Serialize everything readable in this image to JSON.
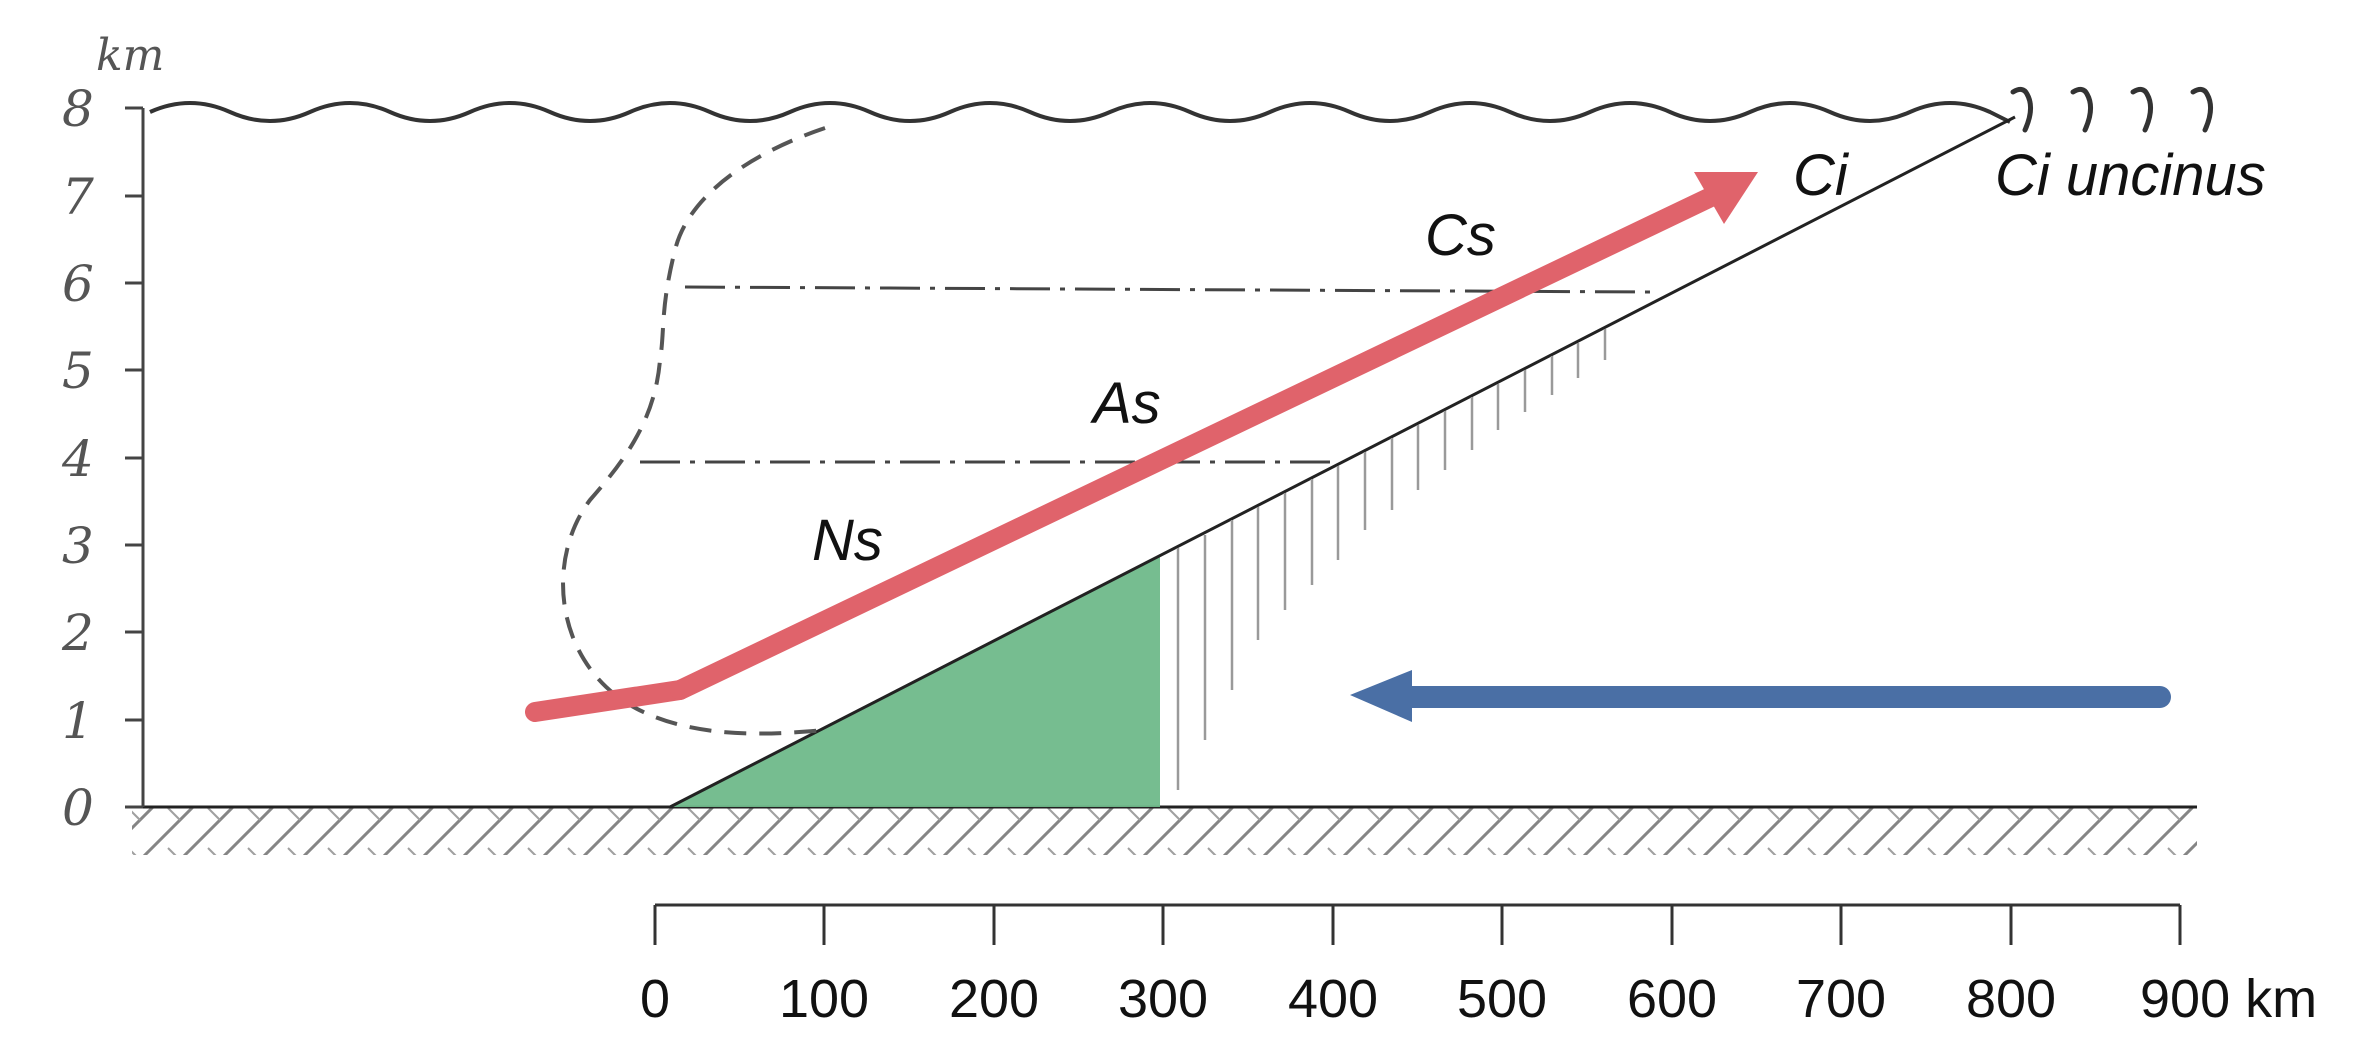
{
  "axes": {
    "y_unit": "km",
    "y_ticks": [
      "0",
      "1",
      "2",
      "3",
      "4",
      "5",
      "6",
      "7",
      "8"
    ],
    "x_ticks": [
      "0",
      "100",
      "200",
      "300",
      "400",
      "500",
      "600",
      "700",
      "800",
      "900 km"
    ]
  },
  "cloud_labels": {
    "ns": "Ns",
    "as": "As",
    "cs": "Cs",
    "ci": "Ci",
    "ci_uncinus": "Ci uncinus"
  },
  "colors": {
    "warm_arrow": "#e0636b",
    "cold_arrow": "#4a6fa5",
    "cold_air": "#6fb98a",
    "lines": "#333333"
  }
}
